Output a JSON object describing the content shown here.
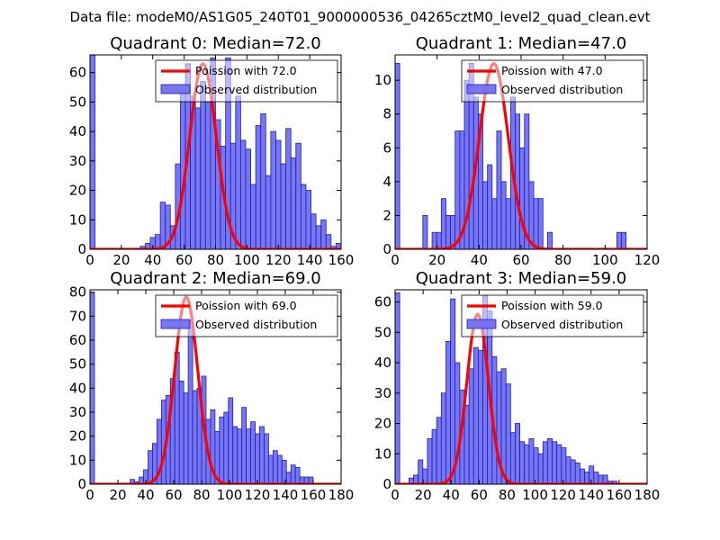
{
  "figure": {
    "suptitle": "Data file: modeM0/AS1G05_240T01_9000000536_04265cztM0_level2_quad_clean.evt"
  },
  "colors": {
    "hist_fill": "#7070f0",
    "hist_edge": "#1c1cc0",
    "poisson_line": "#ff0000",
    "legend_edge": "#000000"
  },
  "chart_data": [
    {
      "type": "bar",
      "title": "Quadrant 0: Median=72.0",
      "median": 72.0,
      "xlim": [
        0,
        160
      ],
      "ylim": [
        0,
        66
      ],
      "xticks": [
        0,
        20,
        40,
        60,
        80,
        100,
        120,
        140,
        160
      ],
      "yticks": [
        0,
        10,
        20,
        30,
        40,
        50,
        60
      ],
      "series": [
        {
          "name": "Observed distribution",
          "kind": "histogram",
          "bin_start": 0,
          "bin_width": 3.2,
          "values": [
            66,
            0,
            0,
            0,
            0,
            0,
            0,
            0,
            0,
            0,
            1,
            2,
            4,
            5,
            16,
            15,
            8,
            29,
            54,
            63,
            52,
            48,
            57,
            50,
            65,
            44,
            35,
            65,
            36,
            52,
            37,
            34,
            22,
            42,
            46,
            25,
            40,
            37,
            29,
            41,
            31,
            36,
            22,
            20,
            12,
            8,
            10,
            5,
            1,
            2
          ]
        },
        {
          "name": "Poission with 72.0",
          "kind": "poisson_line",
          "peak": 63
        }
      ],
      "legend": [
        "Poission with 72.0",
        "Observed distribution"
      ],
      "legend_position": "top-right"
    },
    {
      "type": "bar",
      "title": "Quadrant 1: Median=47.0",
      "median": 47.0,
      "xlim": [
        0,
        120
      ],
      "ylim": [
        0,
        11.5
      ],
      "xticks": [
        0,
        20,
        40,
        60,
        80,
        100,
        120
      ],
      "yticks": [
        0,
        2,
        4,
        6,
        8,
        10
      ],
      "series": [
        {
          "name": "Observed distribution",
          "kind": "histogram",
          "bin_start": 0,
          "bin_width": 2.2,
          "values": [
            11,
            0,
            0,
            0,
            0,
            0,
            2,
            0,
            1,
            1,
            3,
            2,
            2,
            7,
            7,
            10,
            11,
            9,
            8,
            4,
            5,
            3,
            7,
            4,
            3,
            9,
            8,
            6,
            8,
            4,
            3,
            3,
            0,
            1,
            0,
            0,
            0,
            0,
            0,
            0,
            0,
            0,
            0,
            0,
            0,
            0,
            0,
            0,
            1,
            1
          ]
        },
        {
          "name": "Poission with 47.0",
          "kind": "poisson_line",
          "peak": 11
        }
      ],
      "legend": [
        "Poission with 47.0",
        "Observed distribution"
      ],
      "legend_position": "top-right"
    },
    {
      "type": "bar",
      "title": "Quadrant 2: Median=69.0",
      "median": 69.0,
      "xlim": [
        0,
        180
      ],
      "ylim": [
        0,
        81
      ],
      "xticks": [
        0,
        20,
        40,
        60,
        80,
        100,
        120,
        140,
        160,
        180
      ],
      "yticks": [
        0,
        10,
        20,
        30,
        40,
        50,
        60,
        70,
        80
      ],
      "series": [
        {
          "name": "Observed distribution",
          "kind": "histogram",
          "bin_start": 0,
          "bin_width": 3.2,
          "values": [
            80,
            0,
            0,
            0,
            0,
            0,
            0,
            0,
            0,
            2,
            1,
            3,
            6,
            14,
            17,
            27,
            35,
            37,
            44,
            55,
            43,
            38,
            68,
            39,
            40,
            45,
            27,
            31,
            22,
            28,
            30,
            36,
            24,
            23,
            32,
            23,
            26,
            21,
            24,
            21,
            12,
            14,
            12,
            10,
            5,
            8,
            7,
            3,
            3,
            3
          ]
        },
        {
          "name": "Poission with 69.0",
          "kind": "poisson_line",
          "peak": 78
        }
      ],
      "legend": [
        "Poission with 69.0",
        "Observed distribution"
      ],
      "legend_position": "top-right"
    },
    {
      "type": "bar",
      "title": "Quadrant 3: Median=59.0",
      "median": 59.0,
      "xlim": [
        0,
        180
      ],
      "ylim": [
        0,
        64
      ],
      "xticks": [
        0,
        20,
        40,
        60,
        80,
        100,
        120,
        140,
        160,
        180
      ],
      "yticks": [
        0,
        10,
        20,
        30,
        40,
        50,
        60
      ],
      "series": [
        {
          "name": "Observed distribution",
          "kind": "histogram",
          "bin_start": 0,
          "bin_width": 3.3,
          "values": [
            63,
            0,
            0,
            2,
            3,
            8,
            5,
            15,
            18,
            22,
            30,
            47,
            61,
            40,
            31,
            26,
            38,
            45,
            44,
            62,
            57,
            42,
            37,
            38,
            33,
            17,
            20,
            14,
            13,
            15,
            12,
            10,
            14,
            15,
            14,
            13,
            12,
            9,
            8,
            7,
            5,
            4,
            6,
            4,
            3,
            3,
            1,
            1,
            0,
            0
          ]
        },
        {
          "name": "Poission with 59.0",
          "kind": "poisson_line",
          "peak": 56
        }
      ],
      "legend": [
        "Poission with 59.0",
        "Observed distribution"
      ],
      "legend_position": "top-right"
    }
  ]
}
